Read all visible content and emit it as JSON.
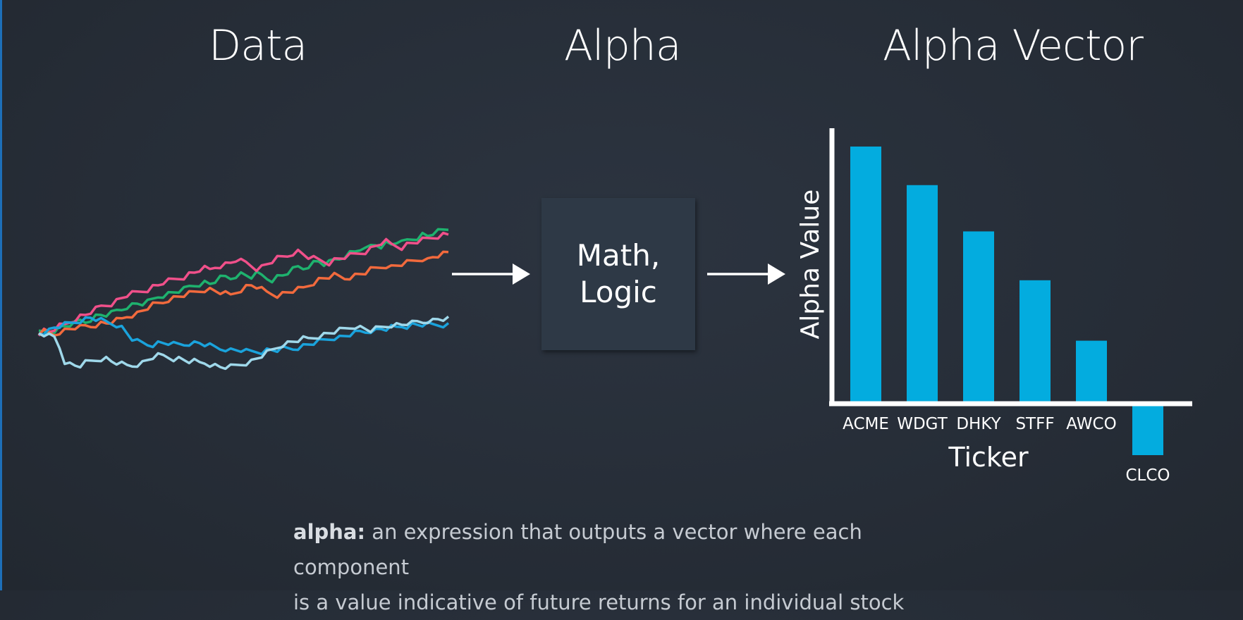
{
  "headings": {
    "data": "Data",
    "alpha": "Alpha",
    "alpha_vector": "Alpha Vector"
  },
  "box": {
    "line1": "Math,",
    "line2": "Logic"
  },
  "data_series": [
    {
      "color": "#1eb26e",
      "values": [
        100,
        101,
        100,
        102,
        104,
        105,
        106,
        107,
        109,
        108,
        110,
        112,
        113,
        113,
        114,
        116,
        117,
        119,
        120,
        121,
        121,
        122,
        124,
        126,
        127,
        128,
        129,
        130,
        131,
        133,
        134,
        135,
        136,
        135,
        137,
        139,
        140,
        139,
        141,
        142,
        141,
        140,
        142,
        141,
        139,
        138,
        140,
        141,
        143,
        145,
        147,
        146,
        148,
        150,
        151,
        149,
        150,
        152,
        153,
        155,
        157,
        158,
        160,
        159,
        162,
        163,
        162,
        164,
        163,
        165,
        164,
        166,
        167,
        168,
        170,
        169,
        171,
        172,
        173,
        174
      ]
    },
    {
      "color": "#f0508a",
      "values": [
        100,
        102,
        101,
        103,
        105,
        106,
        108,
        110,
        112,
        113,
        115,
        117,
        119,
        120,
        121,
        123,
        125,
        127,
        128,
        129,
        130,
        131,
        133,
        134,
        136,
        137,
        138,
        139,
        140,
        142,
        143,
        145,
        146,
        145,
        147,
        148,
        149,
        150,
        152,
        151,
        150,
        148,
        146,
        147,
        149,
        151,
        153,
        154,
        155,
        157,
        158,
        156,
        154,
        153,
        152,
        151,
        150,
        152,
        153,
        154,
        155,
        156,
        157,
        158,
        160,
        162,
        164,
        165,
        163,
        162,
        161,
        163,
        164,
        165,
        166,
        167,
        168,
        169,
        170,
        170
      ]
    },
    {
      "color": "#f26a3d",
      "values": [
        100,
        101,
        100,
        99,
        101,
        102,
        103,
        104,
        104,
        105,
        105,
        106,
        107,
        107,
        108,
        109,
        110,
        112,
        113,
        114,
        116,
        118,
        120,
        121,
        122,
        124,
        125,
        126,
        127,
        128,
        129,
        130,
        131,
        131,
        130,
        129,
        128,
        127,
        129,
        131,
        133,
        134,
        133,
        131,
        129,
        128,
        127,
        128,
        129,
        130,
        131,
        132,
        134,
        136,
        138,
        139,
        140,
        141,
        140,
        139,
        140,
        141,
        142,
        143,
        145,
        146,
        147,
        148,
        147,
        148,
        149,
        150,
        151,
        152,
        153,
        152,
        154,
        155,
        156,
        157
      ]
    },
    {
      "color": "#1aa3dc",
      "values": [
        100,
        101,
        102,
        104,
        105,
        106,
        107,
        108,
        109,
        110,
        111,
        110,
        109,
        108,
        107,
        106,
        104,
        100,
        96,
        94,
        93,
        92,
        92,
        93,
        93,
        93,
        92,
        92,
        92,
        93,
        93,
        93,
        92,
        91,
        90,
        89,
        89,
        88,
        88,
        88,
        87,
        87,
        87,
        87,
        88,
        88,
        88,
        89,
        89,
        89,
        90,
        91,
        92,
        93,
        94,
        95,
        96,
        97,
        97,
        98,
        99,
        100,
        101,
        101,
        102,
        102,
        103,
        103,
        104,
        104,
        105,
        105,
        106,
        106,
        106,
        106,
        106,
        106,
        106,
        106
      ]
    },
    {
      "color": "#9fd8ea",
      "values": [
        100,
        99,
        98,
        97,
        90,
        80,
        78,
        77,
        77,
        79,
        80,
        81,
        82,
        82,
        80,
        79,
        78,
        77,
        77,
        78,
        79,
        81,
        83,
        84,
        84,
        83,
        82,
        82,
        81,
        80,
        80,
        79,
        79,
        78,
        77,
        76,
        76,
        76,
        77,
        78,
        79,
        80,
        82,
        84,
        86,
        88,
        90,
        92,
        93,
        94,
        95,
        96,
        96,
        97,
        98,
        99,
        100,
        101,
        102,
        103,
        104,
        105,
        104,
        103,
        102,
        103,
        104,
        105,
        106,
        106,
        106,
        107,
        107,
        108,
        108,
        109,
        109,
        110,
        110,
        110
      ]
    }
  ],
  "chart_data": {
    "type": "bar",
    "title": "Alpha Vector",
    "xlabel": "Ticker",
    "ylabel": "Alpha Value",
    "categories": [
      "ACME",
      "WDGT",
      "DHKY",
      "STFF",
      "AWCO",
      "CLCO"
    ],
    "values": [
      100,
      85,
      67,
      48,
      24.5,
      -20
    ],
    "ylim": [
      -20,
      100
    ],
    "grid": false,
    "bar_color": "#03acdf"
  },
  "caption": {
    "term": "alpha:",
    "line1": " an expression that outputs a vector where each component",
    "line2": "is a value indicative of future returns for an individual stock"
  }
}
